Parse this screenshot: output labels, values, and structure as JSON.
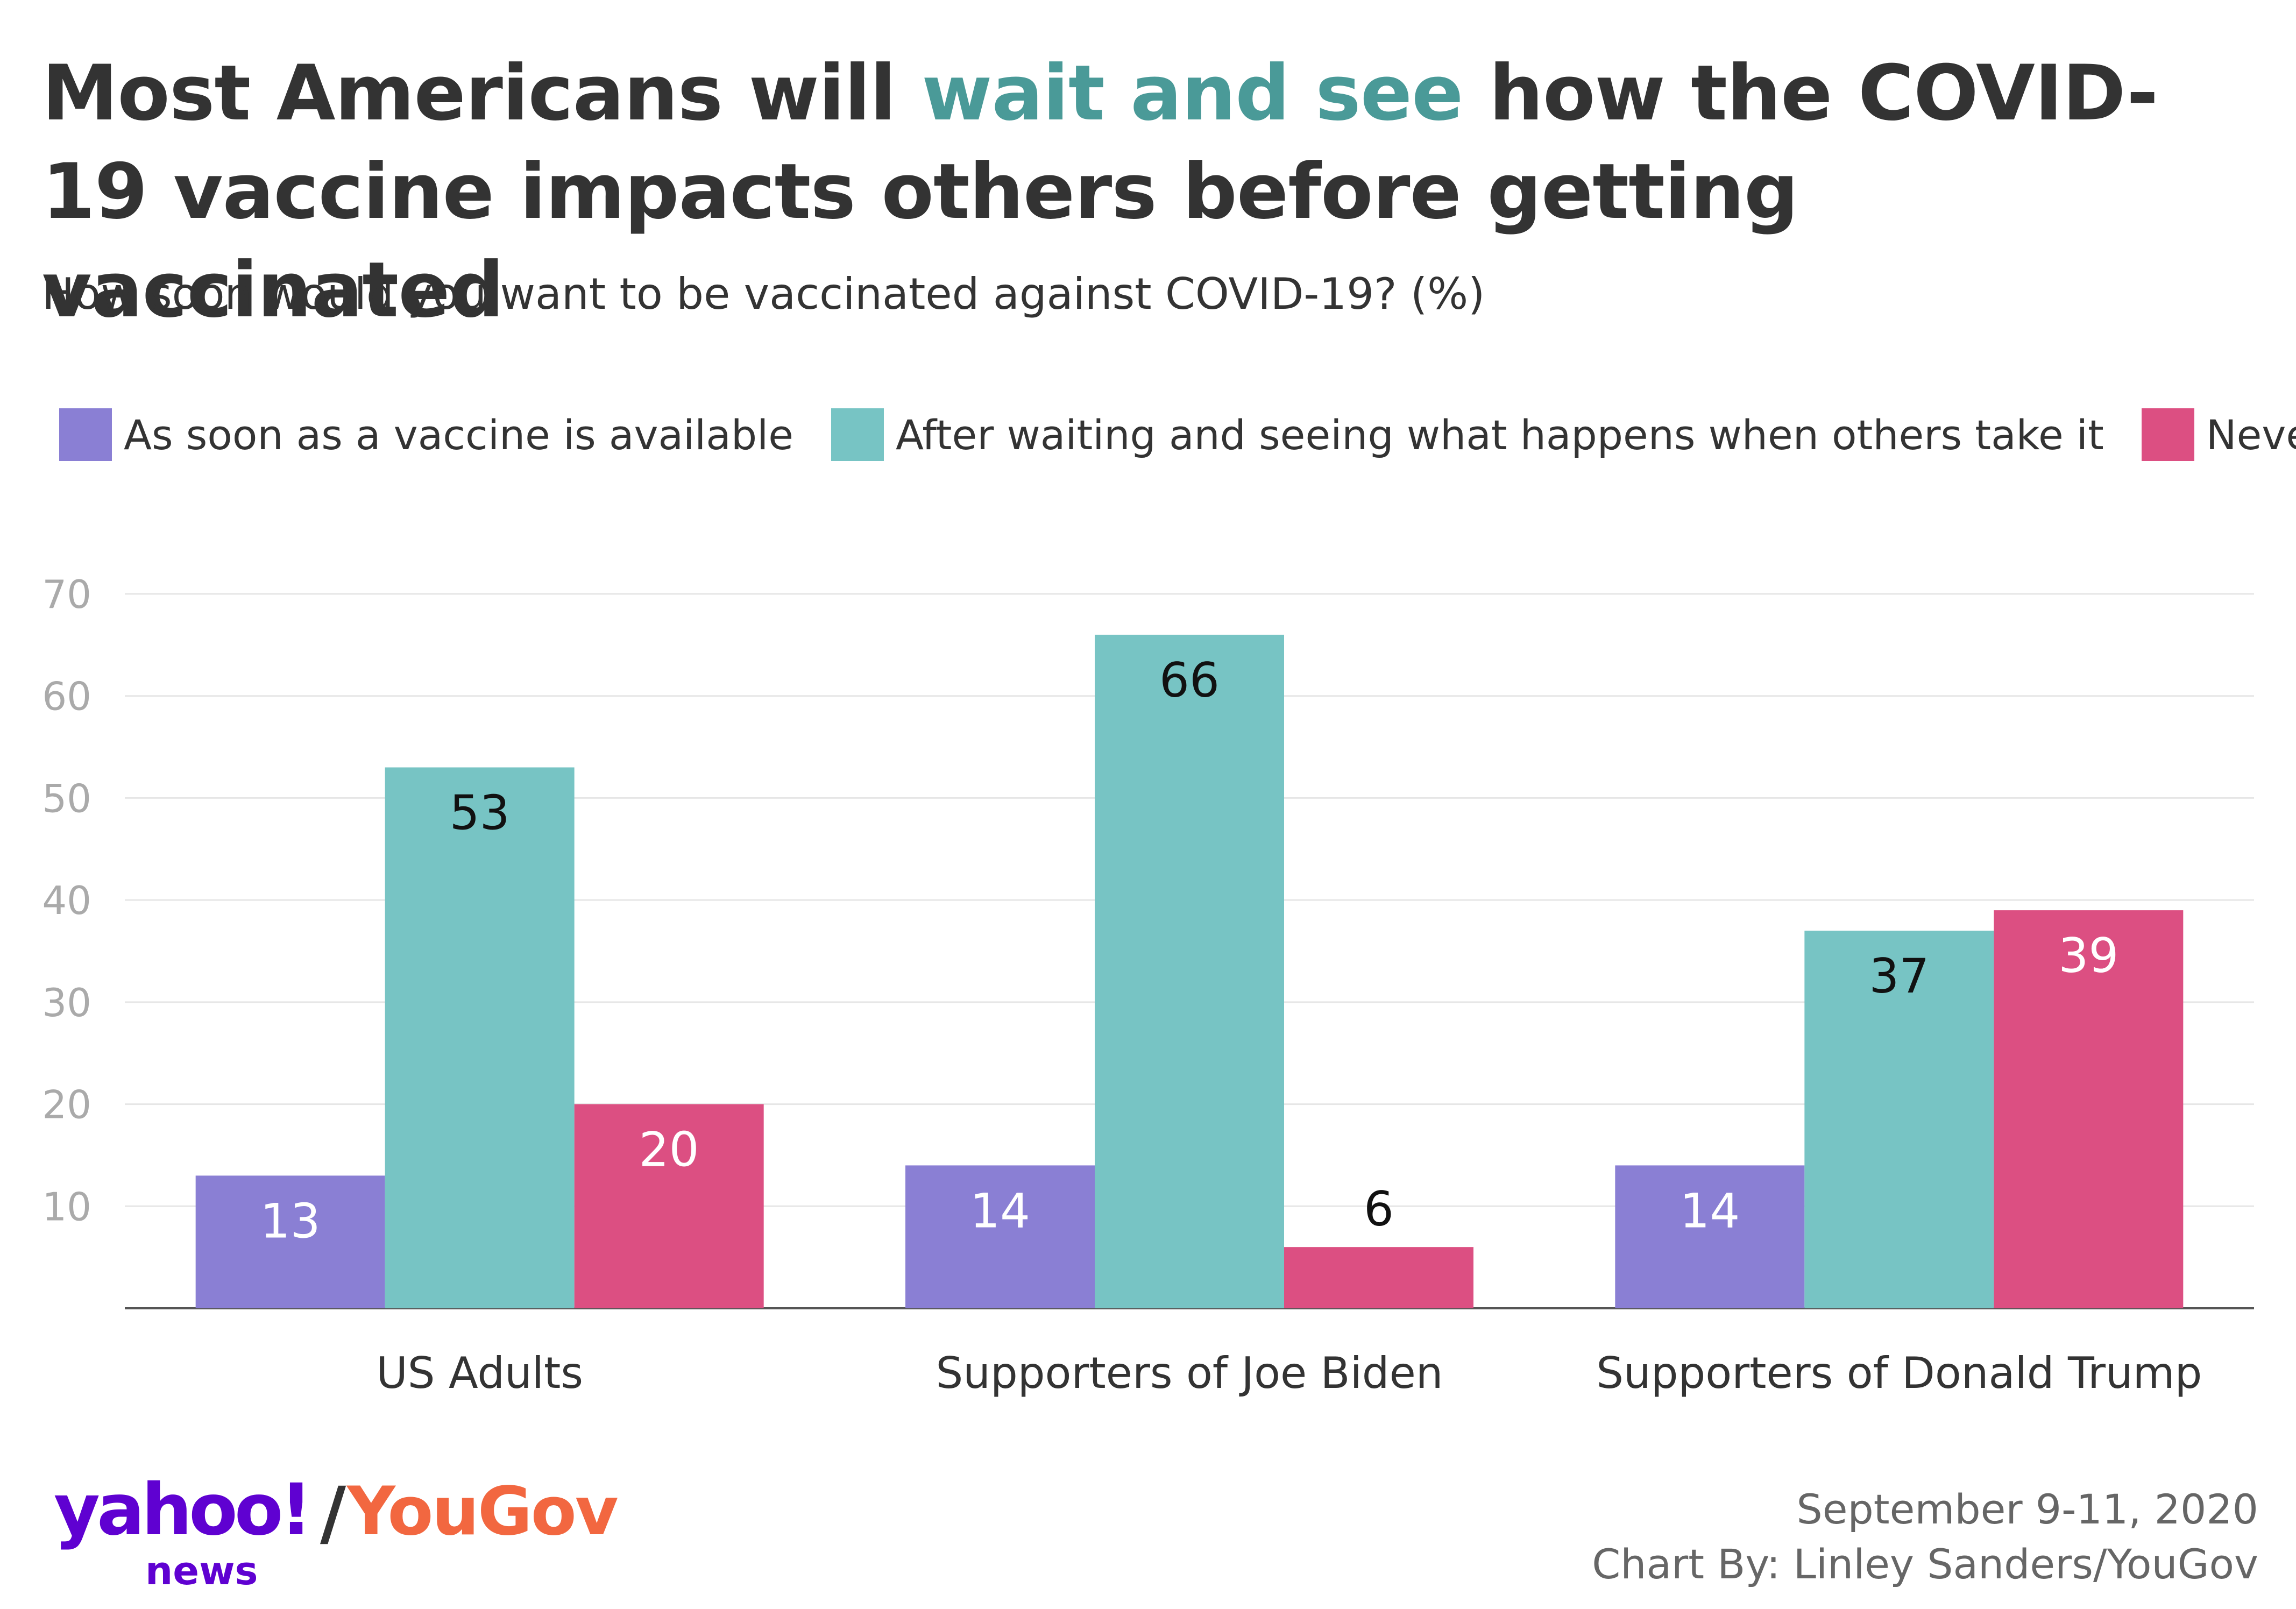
{
  "header": {
    "title_part1": "Most Americans will ",
    "title_highlight": "wait and see",
    "title_part2": " how the COVID-19 vaccine impacts others before getting vaccinated",
    "subtitle": "How soon would you want to be vaccinated against COVID-19? (%)"
  },
  "footer": {
    "date": "September 9-11, 2020",
    "credit": "Chart By: Linley Sanders/YouGov",
    "logo_yahoo": "yahoo!",
    "logo_slash": "/",
    "logo_yougov": "YouGov",
    "logo_news": "news"
  },
  "chart_data": {
    "type": "bar",
    "categories": [
      "US Adults",
      "Supporters of Joe Biden",
      "Supporters of Donald Trump"
    ],
    "series": [
      {
        "name": "As soon as a vaccine is available",
        "color": "#8a7fd4",
        "label_color": "#ffffff",
        "values": [
          13,
          14,
          14
        ]
      },
      {
        "name": "After waiting and seeing what happens when others take it",
        "color": "#77c4c4",
        "label_color": "#111111",
        "values": [
          53,
          66,
          37
        ]
      },
      {
        "name": "Never",
        "color": "#dc4f82",
        "label_color": "#ffffff",
        "values": [
          20,
          6,
          39
        ]
      }
    ],
    "ylim": [
      0,
      70
    ],
    "yticks": [
      10,
      20,
      30,
      40,
      50,
      60,
      70
    ],
    "grid": true,
    "legend_position": "top-left"
  }
}
